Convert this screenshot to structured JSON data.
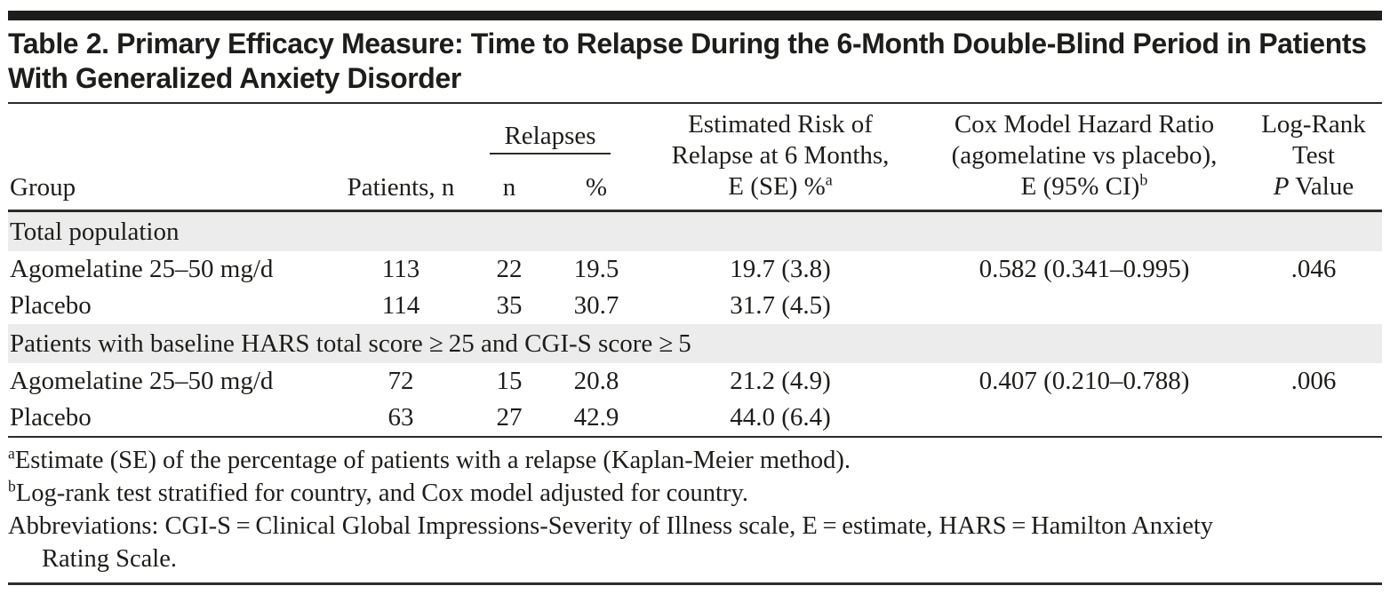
{
  "title": "Table 2. Primary Efficacy Measure: Time to Relapse During the 6-Month Double-Blind Period in Patients With Generalized Anxiety Disorder",
  "columns": {
    "group": "Group",
    "patients": "Patients, n",
    "relapses": "Relapses",
    "relapses_n": "n",
    "relapses_pct": "%",
    "risk_line1": "Estimated Risk of",
    "risk_line2": "Relapse at 6 Months,",
    "risk_line3": "E (SE) %",
    "risk_sup": "a",
    "cox_line1": "Cox Model Hazard Ratio",
    "cox_line2": "(agomelatine vs placebo),",
    "cox_line3": "E (95% CI)",
    "cox_sup": "b",
    "logrank_line1": "Log-Rank",
    "logrank_line2": "Test",
    "logrank_p": "P",
    "logrank_value": " Value"
  },
  "sections": [
    {
      "header": "Total population",
      "rows": [
        {
          "group": "Agomelatine 25–50 mg/d",
          "patients": "113",
          "n": "22",
          "pct": "19.5",
          "risk": "19.7 (3.8)",
          "cox": "0.582 (0.341–0.995)",
          "p": ".046"
        },
        {
          "group": "Placebo",
          "patients": "114",
          "n": "35",
          "pct": "30.7",
          "risk": "31.7 (4.5)",
          "cox": "",
          "p": ""
        }
      ]
    },
    {
      "header": "Patients with baseline HARS total score ≥ 25 and CGI-S score ≥ 5",
      "rows": [
        {
          "group": "Agomelatine 25–50 mg/d",
          "patients": "72",
          "n": "15",
          "pct": "20.8",
          "risk": "21.2 (4.9)",
          "cox": "0.407 (0.210–0.788)",
          "p": ".006"
        },
        {
          "group": "Placebo",
          "patients": "63",
          "n": "27",
          "pct": "42.9",
          "risk": "44.0 (6.4)",
          "cox": "",
          "p": ""
        }
      ]
    }
  ],
  "footnotes": {
    "a_sup": "a",
    "a_text": "Estimate (SE) of the percentage of patients with a relapse (Kaplan-Meier method).",
    "b_sup": "b",
    "b_text": "Log-rank test stratified for country, and Cox model adjusted for country.",
    "abbreviations": "Abbreviations: CGI-S = Clinical Global Impressions-Severity of Illness scale, E = estimate, HARS = Hamilton Anxiety Rating Scale."
  }
}
